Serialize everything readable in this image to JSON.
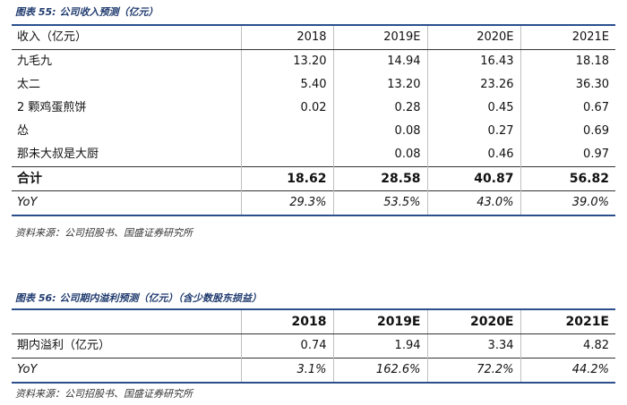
{
  "table55": {
    "caption_label": "图表 55:",
    "caption_title": "公司收入预测（亿元）",
    "header": [
      "收入（亿元）",
      "2018",
      "2019E",
      "2020E",
      "2021E"
    ],
    "rows": [
      [
        "九毛九",
        "13.20",
        "14.94",
        "16.43",
        "18.18"
      ],
      [
        "太二",
        "5.40",
        "13.20",
        "23.26",
        "36.30"
      ],
      [
        "2 颗鸡蛋煎饼",
        "0.02",
        "0.28",
        "0.45",
        "0.67"
      ],
      [
        "怂",
        "",
        "0.08",
        "0.27",
        "0.69"
      ],
      [
        "那未大叔是大厨",
        "",
        "0.08",
        "0.46",
        "0.97"
      ]
    ],
    "total": [
      "合计",
      "18.62",
      "28.58",
      "40.87",
      "56.82"
    ],
    "yoy": [
      "YoY",
      "29.3%",
      "53.5%",
      "43.0%",
      "39.0%"
    ],
    "source": "资料来源：公司招股书、国盛证券研究所"
  },
  "table56": {
    "caption_label": "图表 56:",
    "caption_title": "公司期内溢利预测（亿元）（含少数股东损益）",
    "header": [
      "",
      "2018",
      "2019E",
      "2020E",
      "2021E"
    ],
    "rows": [
      [
        "期内溢利（亿元）",
        "0.74",
        "1.94",
        "3.34",
        "4.82"
      ]
    ],
    "yoy": [
      "YoY",
      "3.1%",
      "162.6%",
      "72.2%",
      "44.2%"
    ],
    "source": "资料来源：公司招股书、国盛证券研究所"
  }
}
